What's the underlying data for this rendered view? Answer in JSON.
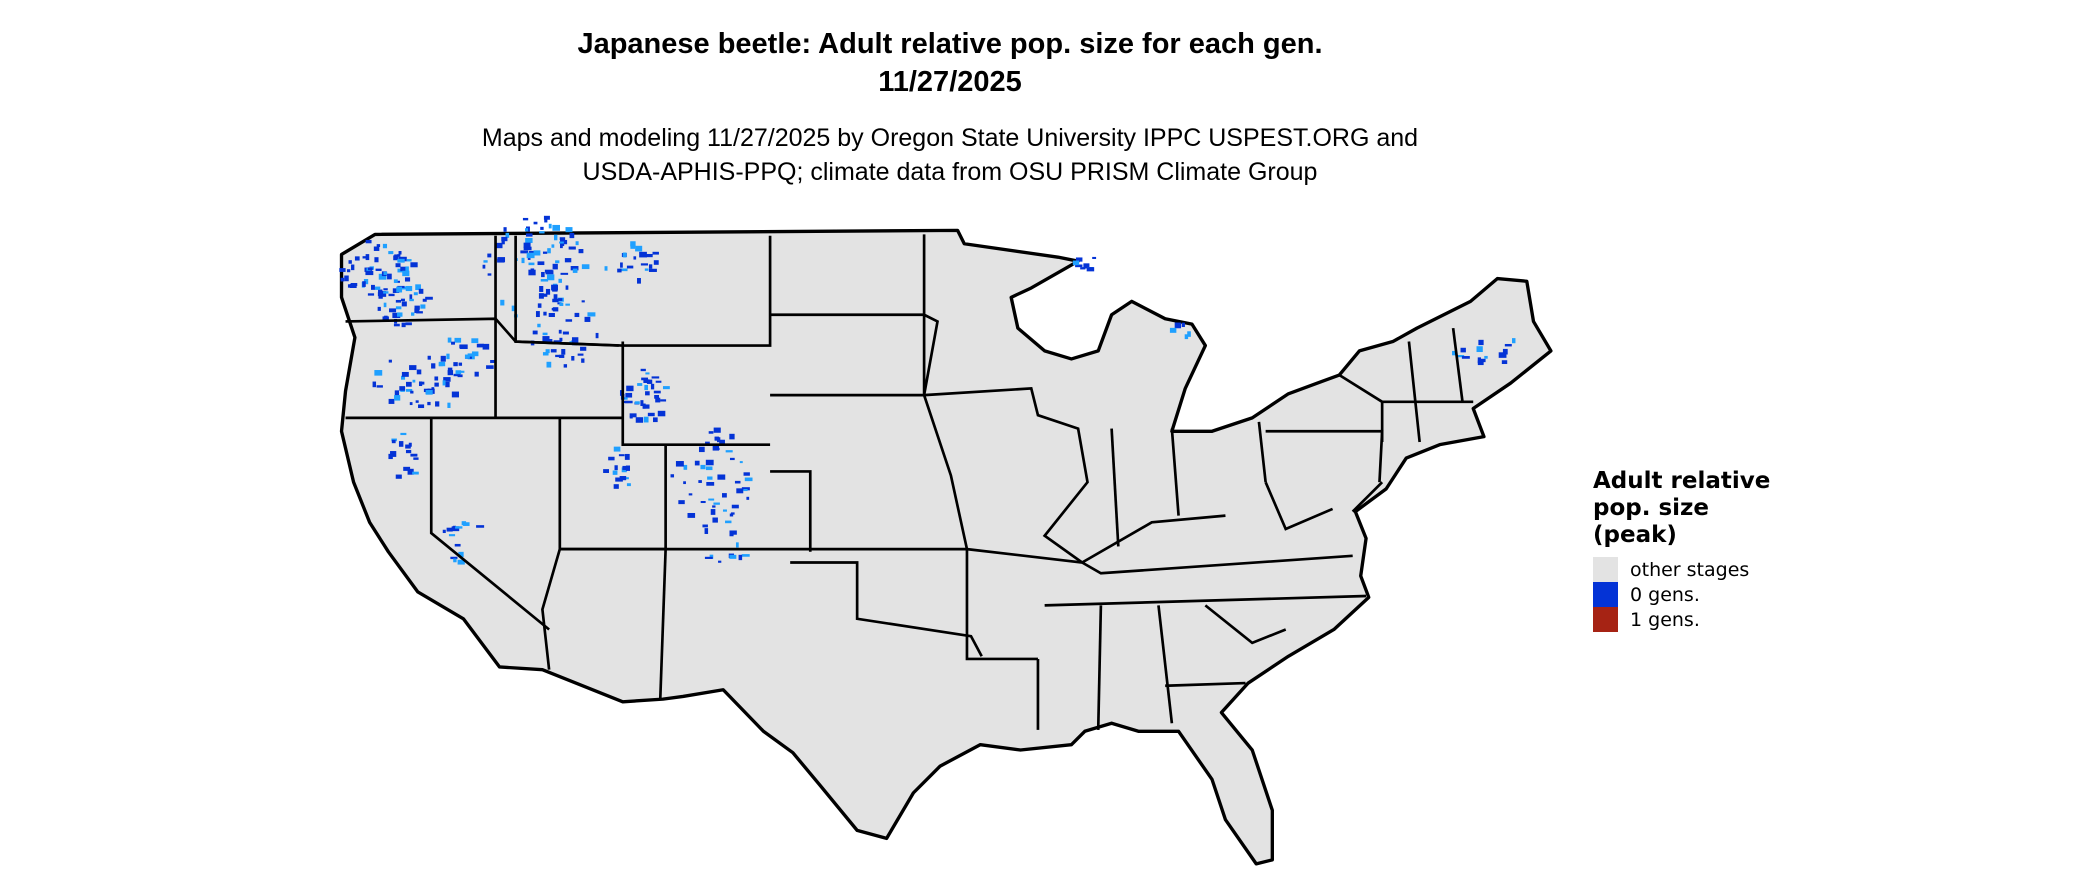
{
  "title": {
    "line1": "Japanese beetle: Adult relative pop. size for each gen.",
    "line2": "11/27/2025"
  },
  "subtitle": {
    "line1": "Maps and modeling 11/27/2025 by Oregon State University IPPC USPEST.ORG and",
    "line2": "USDA-APHIS-PPQ; climate data from OSU PRISM Climate Group"
  },
  "map": {
    "region": "Contiguous United States",
    "base_color": "#e3e3e3",
    "border_color": "#000000"
  },
  "legend": {
    "title": "Adult relative pop. size (peak)",
    "title_lines": [
      "Adult relative",
      "pop. size",
      "(peak)"
    ],
    "items": [
      {
        "label": "other stages",
        "color": "#e3e3e3"
      },
      {
        "label": "0 gens.",
        "color": "#0433d6"
      },
      {
        "label": "1 gens.",
        "color": "#a62314"
      }
    ]
  }
}
